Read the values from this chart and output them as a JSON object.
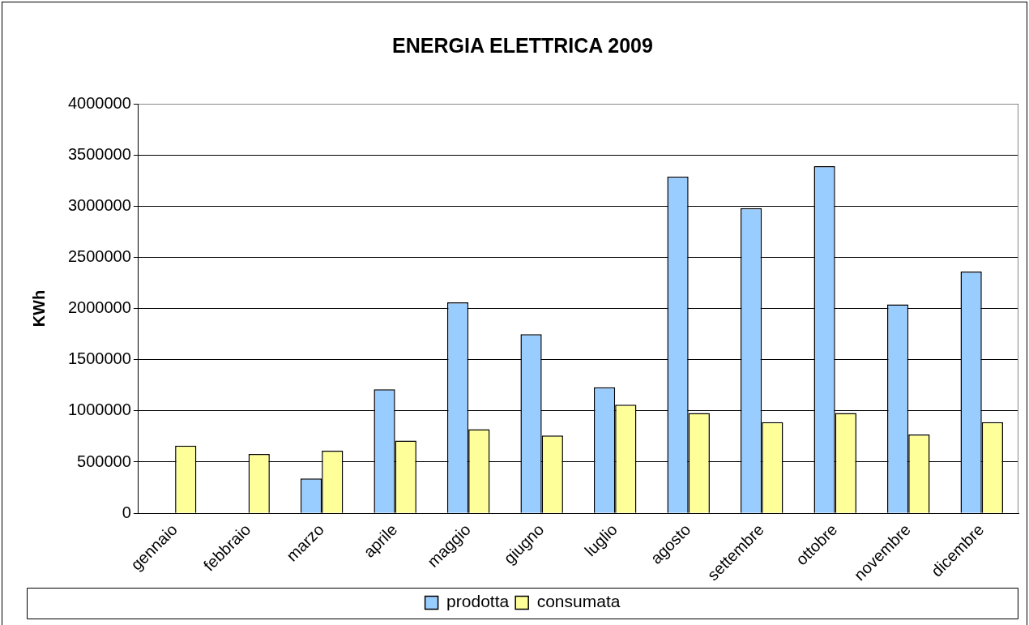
{
  "chart_data": {
    "type": "bar",
    "title": "ENERGIA ELETTRICA 2009",
    "ylabel": "KWh",
    "categories": [
      "gennaio",
      "febbraio",
      "marzo",
      "aprile",
      "maggio",
      "giugno",
      "luglio",
      "agosto",
      "settembre",
      "ottobre",
      "novembre",
      "dicembre"
    ],
    "series": [
      {
        "name": "prodotta",
        "color": "#99ccff",
        "values": [
          null,
          null,
          340000,
          1210000,
          2060000,
          1750000,
          1230000,
          3290000,
          2980000,
          3390000,
          2040000,
          2360000
        ]
      },
      {
        "name": "consumata",
        "color": "#ffff99",
        "values": [
          660000,
          580000,
          610000,
          710000,
          820000,
          760000,
          1060000,
          980000,
          890000,
          980000,
          770000,
          890000
        ]
      }
    ],
    "ylim": [
      0,
      4000000
    ],
    "yticks": [
      0,
      500000,
      1000000,
      1500000,
      2000000,
      2500000,
      3000000,
      3500000,
      4000000
    ],
    "grid": "y",
    "legend": "bottom"
  }
}
